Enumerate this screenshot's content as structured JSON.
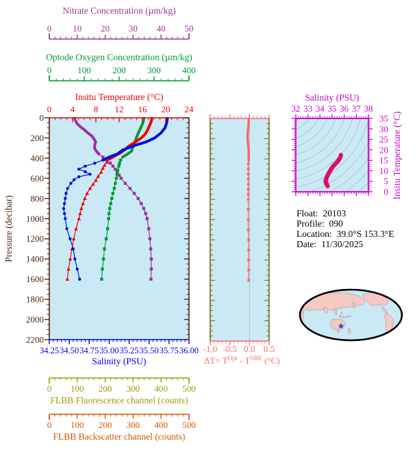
{
  "colors": {
    "page_bg": "#FFFFFF",
    "panel_bg": "#C9E9F5",
    "frame_brown": "#4A2510",
    "contour_gray": "#98A8B2",
    "info_text": "#000000"
  },
  "axes": {
    "nitrate": {
      "title": "Nitrate Concentration (µm/kg)",
      "color": "#993399",
      "min": 0,
      "max": 50,
      "majors": [
        "0",
        "10",
        "20",
        "30",
        "40",
        "50"
      ],
      "minor": 2
    },
    "oxygen": {
      "title": "Optode Oxygen Concentration (µm/kg)",
      "color": "#009933",
      "min": 0,
      "max": 400,
      "majors": [
        "0",
        "100",
        "200",
        "300",
        "400"
      ],
      "minor": 20
    },
    "temperature": {
      "title": "Insitu Temperature (°C)",
      "color": "#EE0000",
      "min": 0,
      "max": 24,
      "majors": [
        "0",
        "4",
        "8",
        "12",
        "16",
        "20",
        "24"
      ],
      "minor": 1
    },
    "pressure": {
      "title": "Pressure (decibar)",
      "color": "#4A2510",
      "min": 0,
      "max": 2200,
      "majors": [
        "0",
        "200",
        "400",
        "600",
        "800",
        "1000",
        "1200",
        "1400",
        "1600",
        "1800",
        "2000",
        "2200"
      ],
      "minor": 50
    },
    "salinity": {
      "title": "Salinity (PSU)",
      "color": "#0000EE",
      "min": 34.25,
      "max": 36,
      "majors": [
        "34.25",
        "34.50",
        "34.75",
        "35.00",
        "35.25",
        "35.50",
        "35.75",
        "36.00"
      ],
      "minor": 0.05
    },
    "fluorescence": {
      "title": "FLBB Fluorescence channel (counts)",
      "color": "#9C9C00",
      "min": 0,
      "max": 500,
      "majors": [
        "0",
        "100",
        "200",
        "300",
        "400",
        "500"
      ],
      "minor": 20
    },
    "backscatter": {
      "title": "FLBB Backscatter channel (counts)",
      "color": "#D45500",
      "min": 0,
      "max": 500,
      "majors": [
        "0",
        "100",
        "200",
        "300",
        "400",
        "500"
      ],
      "minor": 20
    },
    "delta": {
      "title_parts": {
        "t1": "ΔT= T",
        "sup1": "Opt",
        "t2": " - T",
        "sup2": "SBE",
        "t3": " (°C)"
      },
      "color": "#FF6666",
      "side_color": "#6B6B00",
      "zero_line_color": "#C0C0C0",
      "min": -1.0,
      "max": 0.5,
      "majors": [
        "-1.0",
        "-0.5",
        "0.0",
        "0.5"
      ],
      "minor": 0.1
    },
    "ts_salinity": {
      "title": "Salinity (PSU)",
      "color": "#CC00CC",
      "min": 32,
      "max": 38,
      "majors": [
        "32",
        "33",
        "34",
        "35",
        "36",
        "37",
        "38"
      ],
      "minor": 0.2
    },
    "ts_temperature": {
      "title": "Insitu Temperature (°C)",
      "color": "#CC00CC",
      "min": 0,
      "max": 35,
      "majors": [
        "0",
        "5",
        "10",
        "15",
        "20",
        "25",
        "30",
        "35"
      ],
      "minor": 1
    }
  },
  "chart_data": [
    {
      "id": "pressure-profiles",
      "type": "line",
      "y_axis": "pressure",
      "ylabel": "Pressure (decibar)",
      "ylim": [
        0,
        2200
      ],
      "series": [
        {
          "name": "nitrate",
          "axis": "nitrate",
          "color": "#993399",
          "marker": "square",
          "thick_until": 380,
          "points": [
            [
              5,
              9.0
            ],
            [
              30,
              9.4
            ],
            [
              60,
              10.0
            ],
            [
              90,
              11.2
            ],
            [
              120,
              12.6
            ],
            [
              150,
              13.8
            ],
            [
              180,
              15.2
            ],
            [
              210,
              16.0
            ],
            [
              240,
              16.6
            ],
            [
              270,
              16.3
            ],
            [
              300,
              16.2
            ],
            [
              330,
              16.8
            ],
            [
              360,
              17.8
            ],
            [
              390,
              19.2
            ],
            [
              420,
              20.5
            ],
            [
              450,
              21.8
            ],
            [
              480,
              22.8
            ],
            [
              510,
              23.6
            ],
            [
              540,
              24.3
            ],
            [
              570,
              25.0
            ],
            [
              600,
              25.7
            ],
            [
              650,
              27.2
            ],
            [
              700,
              28.9
            ],
            [
              750,
              30.4
            ],
            [
              800,
              31.8
            ],
            [
              850,
              32.9
            ],
            [
              900,
              33.8
            ],
            [
              950,
              34.5
            ],
            [
              1000,
              35.0
            ],
            [
              1100,
              35.6
            ],
            [
              1200,
              36.0
            ],
            [
              1300,
              36.3
            ],
            [
              1400,
              36.5
            ],
            [
              1500,
              36.5
            ],
            [
              1600,
              36.4
            ]
          ]
        },
        {
          "name": "optode-oxygen",
          "axis": "oxygen",
          "color": "#009933",
          "marker": "square",
          "thick_until": 400,
          "points": [
            [
              5,
              271
            ],
            [
              50,
              268
            ],
            [
              100,
              262
            ],
            [
              150,
              255
            ],
            [
              200,
              249
            ],
            [
              250,
              244
            ],
            [
              300,
              238
            ],
            [
              330,
              236
            ],
            [
              360,
              224
            ],
            [
              390,
              210
            ],
            [
              420,
              204
            ],
            [
              450,
              201
            ],
            [
              480,
              199
            ],
            [
              520,
              196
            ],
            [
              560,
              194
            ],
            [
              600,
              192
            ],
            [
              650,
              189
            ],
            [
              700,
              186
            ],
            [
              750,
              182
            ],
            [
              800,
              179
            ],
            [
              850,
              176
            ],
            [
              900,
              173
            ],
            [
              950,
              171
            ],
            [
              1000,
              170
            ],
            [
              1100,
              167
            ],
            [
              1200,
              163
            ],
            [
              1300,
              158
            ],
            [
              1400,
              155
            ],
            [
              1500,
              152
            ],
            [
              1600,
              150
            ]
          ]
        },
        {
          "name": "insitu-temperature",
          "axis": "temperature",
          "color": "#EE0000",
          "marker": "triangle",
          "thick_until": 420,
          "points": [
            [
              5,
              17.6
            ],
            [
              40,
              17.5
            ],
            [
              80,
              17.2
            ],
            [
              120,
              16.9
            ],
            [
              160,
              16.5
            ],
            [
              200,
              15.8
            ],
            [
              240,
              14.8
            ],
            [
              280,
              13.7
            ],
            [
              320,
              12.9
            ],
            [
              350,
              12.2
            ],
            [
              380,
              11.2
            ],
            [
              410,
              10.3
            ],
            [
              440,
              9.9
            ],
            [
              470,
              9.5
            ],
            [
              500,
              9.2
            ],
            [
              540,
              8.9
            ],
            [
              580,
              8.4
            ],
            [
              620,
              8.0
            ],
            [
              660,
              7.5
            ],
            [
              700,
              7.0
            ],
            [
              750,
              6.5
            ],
            [
              800,
              6.1
            ],
            [
              850,
              5.8
            ],
            [
              900,
              5.5
            ],
            [
              950,
              5.3
            ],
            [
              1000,
              5.1
            ],
            [
              1100,
              4.6
            ],
            [
              1200,
              4.2
            ],
            [
              1300,
              3.9
            ],
            [
              1400,
              3.6
            ],
            [
              1500,
              3.3
            ],
            [
              1600,
              3.1
            ]
          ]
        },
        {
          "name": "salinity",
          "axis": "salinity",
          "color": "#0011DD",
          "marker": "circle",
          "thick_until": 420,
          "points": [
            [
              5,
              35.73
            ],
            [
              50,
              35.72
            ],
            [
              100,
              35.7
            ],
            [
              150,
              35.65
            ],
            [
              200,
              35.57
            ],
            [
              240,
              35.46
            ],
            [
              280,
              35.3
            ],
            [
              320,
              35.17
            ],
            [
              360,
              35.1
            ],
            [
              390,
              35.0
            ],
            [
              420,
              34.92
            ],
            [
              450,
              34.82
            ],
            [
              480,
              34.7
            ],
            [
              510,
              34.62
            ],
            [
              535,
              34.7
            ],
            [
              560,
              34.76
            ],
            [
              585,
              34.62
            ],
            [
              615,
              34.56
            ],
            [
              650,
              34.52
            ],
            [
              700,
              34.48
            ],
            [
              750,
              34.46
            ],
            [
              800,
              34.45
            ],
            [
              850,
              34.44
            ],
            [
              900,
              34.43
            ],
            [
              950,
              34.44
            ],
            [
              1000,
              34.45
            ],
            [
              1100,
              34.47
            ],
            [
              1200,
              34.51
            ],
            [
              1300,
              34.55
            ],
            [
              1400,
              34.57
            ],
            [
              1500,
              34.6
            ],
            [
              1600,
              34.63
            ]
          ]
        }
      ]
    },
    {
      "id": "temperature-difference",
      "type": "line",
      "y_axis": "pressure",
      "xlim": [
        -1.0,
        0.5
      ],
      "series": [
        {
          "name": "delta-t",
          "axis": "delta",
          "color": "#FF6666",
          "marker": "square",
          "thick_until": 420,
          "points": [
            [
              5,
              -0.02
            ],
            [
              60,
              -0.02
            ],
            [
              120,
              -0.04
            ],
            [
              180,
              -0.05
            ],
            [
              240,
              -0.04
            ],
            [
              300,
              -0.02
            ],
            [
              360,
              -0.02
            ],
            [
              420,
              -0.02
            ],
            [
              450,
              -0.03
            ],
            [
              500,
              -0.03
            ],
            [
              550,
              -0.03
            ],
            [
              600,
              -0.03
            ],
            [
              650,
              -0.03
            ],
            [
              700,
              -0.03
            ],
            [
              750,
              -0.03
            ],
            [
              800,
              -0.03
            ],
            [
              900,
              -0.03
            ],
            [
              1000,
              -0.03
            ],
            [
              1100,
              -0.03
            ],
            [
              1200,
              -0.02
            ],
            [
              1300,
              -0.02
            ],
            [
              1400,
              -0.02
            ],
            [
              1500,
              -0.02
            ],
            [
              1600,
              -0.02
            ]
          ]
        }
      ]
    },
    {
      "id": "ts-diagram",
      "type": "line",
      "x_axis": "ts_salinity",
      "y_axis": "ts_temperature",
      "xlim": [
        32,
        38
      ],
      "ylim": [
        0,
        35
      ],
      "series": [
        {
          "name": "t-s-curve",
          "color": "#D400AE",
          "edge_color": "#E3261A",
          "points": [
            [
              34.63,
              2.7
            ],
            [
              34.57,
              3.3
            ],
            [
              34.51,
              4.2
            ],
            [
              34.47,
              5.0
            ],
            [
              34.5,
              6.0
            ],
            [
              34.58,
              7.2
            ],
            [
              34.68,
              8.4
            ],
            [
              34.8,
              9.6
            ],
            [
              34.92,
              10.8
            ],
            [
              35.05,
              11.9
            ],
            [
              35.2,
              12.9
            ],
            [
              35.35,
              13.8
            ],
            [
              35.48,
              14.6
            ],
            [
              35.58,
              15.4
            ],
            [
              35.65,
              16.2
            ],
            [
              35.7,
              16.9
            ],
            [
              35.73,
              17.5
            ]
          ]
        }
      ]
    }
  ],
  "info": {
    "lines": [
      {
        "label": "Float:",
        "value": "20103"
      },
      {
        "label": "Profile:",
        "value": "090"
      },
      {
        "label": "Location:",
        "value": "39.0°S  153.3°E"
      },
      {
        "label": "Date:",
        "value": "11/30/2025"
      }
    ]
  },
  "map": {
    "ocean_color": "#C9E9F5",
    "land_color": "#F5C8C4",
    "outline_color": "#000000",
    "marker": "float-location-star",
    "marker_color": "#2244CC"
  }
}
